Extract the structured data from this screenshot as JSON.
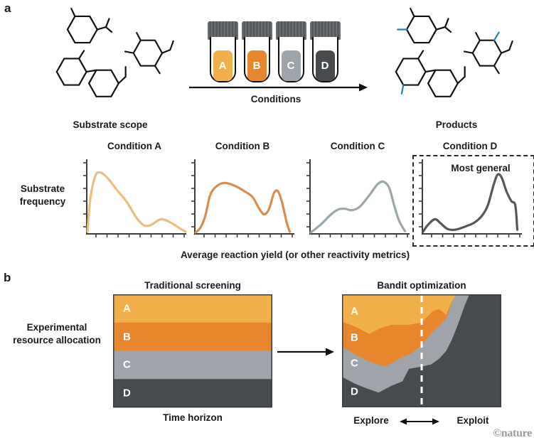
{
  "colors": {
    "bond": "#111111",
    "product_bond_blue": "#1E7DC0",
    "axis": "#3A3D40",
    "vial_cap_base": "#6A6D70",
    "vial_cap_stripe": "#515457",
    "dashed_box": "#2B2B2B",
    "divider_dash": "#FFFFFF",
    "watermark_gray": "#9B9B9B"
  },
  "panel_a": {
    "label": "a",
    "substrate_scope_label": "Substrate scope",
    "conditions_label": "Conditions",
    "products_label": "Products",
    "vials": [
      {
        "label": "A",
        "color": "#F2B04A"
      },
      {
        "label": "B",
        "color": "#E8862D"
      },
      {
        "label": "C",
        "color": "#9EA4A9"
      },
      {
        "label": "D",
        "color": "#474B4E"
      }
    ]
  },
  "panel_b": {
    "label": "b",
    "left_axis_label": "Experimental resource allocation"
  },
  "watermark": "©nature",
  "chart_data": [
    {
      "type": "line",
      "id": "substrate-frequency-distributions",
      "ylabel": "Substrate frequency",
      "xlabel": "Average reaction yield (or other reactivity metrics)",
      "y_ticks": 6,
      "x_ticks": 9,
      "axes_numeric": false,
      "charts": [
        {
          "title": "Condition A",
          "color": "#EBBE7E",
          "points": [
            [
              0,
              0.02
            ],
            [
              0.03,
              0.5
            ],
            [
              0.08,
              0.82
            ],
            [
              0.13,
              0.87
            ],
            [
              0.2,
              0.8
            ],
            [
              0.3,
              0.62
            ],
            [
              0.4,
              0.45
            ],
            [
              0.5,
              0.22
            ],
            [
              0.58,
              0.11
            ],
            [
              0.65,
              0.12
            ],
            [
              0.75,
              0.2
            ],
            [
              0.85,
              0.15
            ],
            [
              0.95,
              0.06
            ],
            [
              1,
              0.02
            ]
          ]
        },
        {
          "title": "Condition B",
          "color": "#DB8C50",
          "points": [
            [
              0,
              0.01
            ],
            [
              0.05,
              0.08
            ],
            [
              0.1,
              0.25
            ],
            [
              0.15,
              0.55
            ],
            [
              0.22,
              0.68
            ],
            [
              0.3,
              0.72
            ],
            [
              0.4,
              0.68
            ],
            [
              0.5,
              0.6
            ],
            [
              0.58,
              0.52
            ],
            [
              0.65,
              0.35
            ],
            [
              0.7,
              0.27
            ],
            [
              0.75,
              0.35
            ],
            [
              0.8,
              0.58
            ],
            [
              0.84,
              0.6
            ],
            [
              0.88,
              0.45
            ],
            [
              0.93,
              0.15
            ],
            [
              0.96,
              0.02
            ]
          ]
        },
        {
          "title": "Condition C",
          "color": "#9CA6AD",
          "points": [
            [
              0,
              0.01
            ],
            [
              0.1,
              0.12
            ],
            [
              0.2,
              0.26
            ],
            [
              0.28,
              0.34
            ],
            [
              0.35,
              0.35
            ],
            [
              0.42,
              0.33
            ],
            [
              0.5,
              0.38
            ],
            [
              0.6,
              0.55
            ],
            [
              0.68,
              0.7
            ],
            [
              0.74,
              0.74
            ],
            [
              0.8,
              0.65
            ],
            [
              0.85,
              0.4
            ],
            [
              0.9,
              0.18
            ],
            [
              0.96,
              0.03
            ]
          ]
        },
        {
          "title": "Condition D",
          "color": "#54585B",
          "annotation": "Most general",
          "highlight_dashed_box": true,
          "points": [
            [
              0,
              0.02
            ],
            [
              0.05,
              0.12
            ],
            [
              0.12,
              0.2
            ],
            [
              0.18,
              0.14
            ],
            [
              0.25,
              0.06
            ],
            [
              0.33,
              0.05
            ],
            [
              0.42,
              0.09
            ],
            [
              0.52,
              0.15
            ],
            [
              0.6,
              0.25
            ],
            [
              0.66,
              0.4
            ],
            [
              0.72,
              0.7
            ],
            [
              0.76,
              0.84
            ],
            [
              0.8,
              0.8
            ],
            [
              0.85,
              0.6
            ],
            [
              0.9,
              0.46
            ],
            [
              0.94,
              0.4
            ],
            [
              0.96,
              0.05
            ]
          ]
        }
      ]
    },
    {
      "type": "area",
      "id": "traditional-screening",
      "title": "Traditional screening",
      "xlabel": "Time horizon",
      "bands": [
        {
          "label": "A",
          "color": "#F2B04A",
          "share": 0.25
        },
        {
          "label": "B",
          "color": "#E8862D",
          "share": 0.25
        },
        {
          "label": "C",
          "color": "#9EA4A9",
          "share": 0.25
        },
        {
          "label": "D",
          "color": "#474B4E",
          "share": 0.25
        }
      ]
    },
    {
      "type": "area",
      "id": "bandit-optimization",
      "title": "Bandit optimization",
      "xlabel_left": "Explore",
      "xlabel_right": "Exploit",
      "explore_exploit_divider_x": 0.5,
      "bands": [
        {
          "label": "A",
          "color": "#F2B04A"
        },
        {
          "label": "B",
          "color": "#E8862D"
        },
        {
          "label": "C",
          "color": "#9EA4A9"
        },
        {
          "label": "D",
          "color": "#474B4E"
        }
      ],
      "boundaries": {
        "a_b": [
          [
            0,
            0.24
          ],
          [
            0.09,
            0.29
          ],
          [
            0.17,
            0.35
          ],
          [
            0.24,
            0.3
          ],
          [
            0.31,
            0.27
          ],
          [
            0.42,
            0.27
          ],
          [
            0.5,
            0.25
          ],
          [
            0.57,
            0.15
          ],
          [
            0.61,
            0.13
          ],
          [
            0.655,
            0.18
          ],
          [
            0.69,
            0.06
          ],
          [
            0.72,
            0
          ]
        ],
        "b_c": [
          [
            0,
            0.46
          ],
          [
            0.09,
            0.54
          ],
          [
            0.18,
            0.6
          ],
          [
            0.27,
            0.64
          ],
          [
            0.36,
            0.57
          ],
          [
            0.44,
            0.52
          ],
          [
            0.5,
            0.45
          ],
          [
            0.57,
            0.33
          ],
          [
            0.62,
            0.27
          ],
          [
            0.66,
            0.2
          ],
          [
            0.7,
            0.02
          ],
          [
            0.705,
            0
          ]
        ],
        "c_d": [
          [
            0,
            0.73
          ],
          [
            0.08,
            0.79
          ],
          [
            0.15,
            0.83
          ],
          [
            0.23,
            0.87
          ],
          [
            0.31,
            0.81
          ],
          [
            0.38,
            0.77
          ],
          [
            0.42,
            0.66
          ],
          [
            0.5,
            0.64
          ],
          [
            0.56,
            0.62
          ],
          [
            0.61,
            0.57
          ],
          [
            0.655,
            0.5
          ],
          [
            0.69,
            0.4
          ],
          [
            0.73,
            0.26
          ],
          [
            0.77,
            0.1
          ],
          [
            0.8,
            0
          ]
        ]
      }
    }
  ]
}
